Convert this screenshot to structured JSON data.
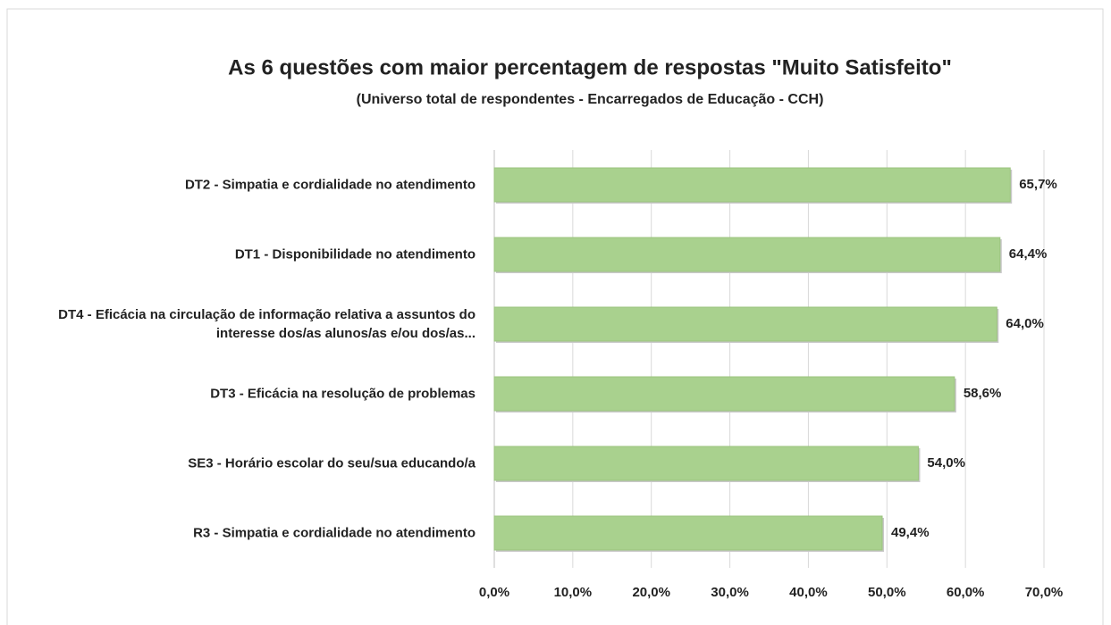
{
  "chart_data": {
    "type": "bar",
    "orientation": "horizontal",
    "title": "As 6 questões com maior percentagem de respostas \"Muito Satisfeito\"",
    "subtitle": "(Universo total de respondentes - Encarregados de Educação - CCH)",
    "categories": [
      "DT2 - Simpatia e cordialidade no atendimento",
      "DT1 - Disponibilidade no atendimento",
      "DT4 - Eficácia na circulação de informação relativa a assuntos do interesse dos/as alunos/as e/ou dos/as...",
      "DT3 - Eficácia na resolução de problemas",
      "SE3 - Horário escolar do seu/sua educando/a",
      "R3 - Simpatia e cordialidade no atendimento"
    ],
    "values": [
      65.7,
      64.4,
      64.0,
      58.6,
      54.0,
      49.4
    ],
    "value_labels": [
      "65,7%",
      "64,4%",
      "64,0%",
      "58,6%",
      "54,0%",
      "49,4%"
    ],
    "color": "#a9d18e",
    "xlim": [
      0,
      70
    ],
    "xticks": [
      {
        "value": 0,
        "label": "0,0%"
      },
      {
        "value": 10,
        "label": "10,0%"
      },
      {
        "value": 20,
        "label": "20,0%"
      },
      {
        "value": 30,
        "label": "30,0%"
      },
      {
        "value": 40,
        "label": "40,0%"
      },
      {
        "value": 50,
        "label": "50,0%"
      },
      {
        "value": 60,
        "label": "60,0%"
      },
      {
        "value": 70,
        "label": "70,0%"
      }
    ],
    "grid": true
  }
}
